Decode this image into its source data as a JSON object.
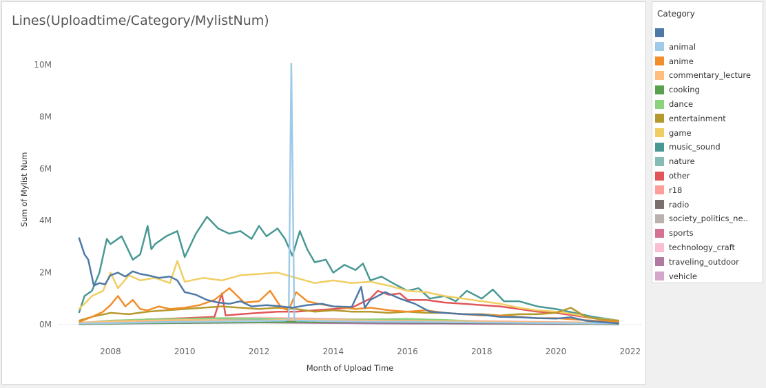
{
  "chart_data": {
    "type": "line",
    "title": "Lines(Uploadtime/Category/MylistNum)",
    "xlabel": "Month of Upload Time",
    "ylabel": "Sum of Mylist Num",
    "xlim": [
      2006.6,
      2022.3
    ],
    "ylim": [
      0,
      10400000
    ],
    "x_ticks": [
      2008,
      2010,
      2012,
      2014,
      2016,
      2018,
      2020,
      2022
    ],
    "x_tick_labels": [
      "2008",
      "2010",
      "2012",
      "2014",
      "2016",
      "2018",
      "2020",
      "2022"
    ],
    "y_ticks": [
      0,
      2000000,
      4000000,
      6000000,
      8000000,
      10000000
    ],
    "y_tick_labels": [
      "0M",
      "2M",
      "4M",
      "6M",
      "8M",
      "10M"
    ],
    "grid": false,
    "legend": {
      "title": "Category",
      "placement": "right",
      "entries": [
        {
          "name": "",
          "color": "#4e79a7"
        },
        {
          "name": "animal",
          "color": "#a0cbe8"
        },
        {
          "name": "anime",
          "color": "#f28e2b"
        },
        {
          "name": "commentary_lecture",
          "color": "#ffbe7d"
        },
        {
          "name": "cooking",
          "color": "#59a14f"
        },
        {
          "name": "dance",
          "color": "#8cd17d"
        },
        {
          "name": "entertainment",
          "color": "#b6992d"
        },
        {
          "name": "game",
          "color": "#f1ce63"
        },
        {
          "name": "music_sound",
          "color": "#499894"
        },
        {
          "name": "nature",
          "color": "#86bcb6"
        },
        {
          "name": "other",
          "color": "#e15759"
        },
        {
          "name": "r18",
          "color": "#ff9d9a"
        },
        {
          "name": "radio",
          "color": "#79706e"
        },
        {
          "name": "society_politics_ne..",
          "color": "#bab0ac"
        },
        {
          "name": "sports",
          "color": "#d37295"
        },
        {
          "name": "technology_craft",
          "color": "#fabfd2"
        },
        {
          "name": "traveling_outdoor",
          "color": "#b07aa1"
        },
        {
          "name": "vehicle",
          "color": "#d4a6c8"
        }
      ]
    },
    "series": [
      {
        "color": "#4e79a7",
        "x": [
          2007.15,
          2007.3,
          2007.4,
          2007.55,
          2007.7,
          2007.85,
          2008.0,
          2008.2,
          2008.4,
          2008.6,
          2008.8,
          2009.0,
          2009.3,
          2009.6,
          2009.8,
          2010.0,
          2010.3,
          2010.6,
          2010.9,
          2011.2,
          2011.5,
          2011.8,
          2012.2,
          2012.6,
          2012.9,
          2013.3,
          2013.7,
          2014.0,
          2014.5,
          2014.75,
          2014.85,
          2015.0,
          2015.4,
          2015.8,
          2016.2,
          2016.6,
          2017.0,
          2017.5,
          2018.0,
          2018.5,
          2019.0,
          2019.5,
          2020.0,
          2020.4,
          2020.8,
          2021.2,
          2021.7
        ],
        "y": [
          3350000,
          2700000,
          2500000,
          1500000,
          1600000,
          1550000,
          1900000,
          2000000,
          1850000,
          2050000,
          1950000,
          1900000,
          1800000,
          1850000,
          1700000,
          1250000,
          1150000,
          950000,
          850000,
          800000,
          900000,
          700000,
          750000,
          700000,
          650000,
          750000,
          800000,
          700000,
          680000,
          1450000,
          650000,
          950000,
          1250000,
          1000000,
          800000,
          500000,
          450000,
          400000,
          380000,
          300000,
          280000,
          250000,
          230000,
          280000,
          150000,
          100000,
          50000
        ]
      },
      {
        "color": "#a0cbe8",
        "x": [
          2007.15,
          2008.0,
          2009.0,
          2010.0,
          2011.0,
          2012.0,
          2012.7,
          2012.8,
          2012.87,
          2012.95,
          2013.02,
          2013.2,
          2014.0,
          2015.0,
          2016.0,
          2017.0,
          2018.0,
          2019.0,
          2020.0,
          2021.0,
          2021.7
        ],
        "y": [
          40000,
          60000,
          80000,
          100000,
          120000,
          140000,
          150000,
          200000,
          10050000,
          250000,
          150000,
          150000,
          130000,
          110000,
          100000,
          90000,
          80000,
          70000,
          60000,
          50000,
          40000
        ]
      },
      {
        "color": "#f28e2b",
        "x": [
          2007.15,
          2007.5,
          2007.8,
          2008.0,
          2008.2,
          2008.4,
          2008.6,
          2008.8,
          2009.0,
          2009.3,
          2009.6,
          2010.0,
          2010.4,
          2010.8,
          2011.2,
          2011.6,
          2012.0,
          2012.3,
          2012.6,
          2012.8,
          2013.0,
          2013.3,
          2013.6,
          2014.0,
          2014.3,
          2014.6,
          2015.0,
          2015.5,
          2016.0,
          2016.5,
          2017.0,
          2017.5,
          2018.0,
          2018.5,
          2019.0,
          2019.5,
          2020.0,
          2020.5,
          2021.0,
          2021.7
        ],
        "y": [
          100000,
          300000,
          500000,
          750000,
          1100000,
          700000,
          950000,
          600000,
          550000,
          700000,
          600000,
          650000,
          750000,
          950000,
          1400000,
          850000,
          900000,
          1300000,
          650000,
          550000,
          1250000,
          900000,
          800000,
          700000,
          650000,
          600000,
          650000,
          550000,
          500000,
          550000,
          450000,
          400000,
          350000,
          350000,
          300000,
          250000,
          250000,
          200000,
          150000,
          100000
        ]
      },
      {
        "color": "#ffbe7d",
        "x": [
          2007.15,
          2008.0,
          2009.0,
          2010.0,
          2011.0,
          2012.0,
          2013.0,
          2014.0,
          2015.0,
          2016.0,
          2017.0,
          2018.0,
          2019.0,
          2020.0,
          2021.0,
          2021.7
        ],
        "y": [
          80000,
          120000,
          150000,
          180000,
          160000,
          150000,
          200000,
          180000,
          150000,
          140000,
          130000,
          120000,
          100000,
          90000,
          80000,
          60000
        ]
      },
      {
        "color": "#59a14f",
        "x": [
          2007.15,
          2008.0,
          2009.0,
          2010.0,
          2011.0,
          2012.0,
          2013.0,
          2014.0,
          2015.0,
          2016.0,
          2017.0,
          2018.0,
          2019.0,
          2020.0,
          2021.0,
          2021.7
        ],
        "y": [
          20000,
          40000,
          60000,
          70000,
          80000,
          90000,
          100000,
          110000,
          120000,
          110000,
          100000,
          90000,
          80000,
          70000,
          60000,
          40000
        ]
      },
      {
        "color": "#8cd17d",
        "x": [
          2007.15,
          2008.0,
          2009.0,
          2010.0,
          2011.0,
          2012.0,
          2013.0,
          2014.0,
          2015.0,
          2016.0,
          2017.0,
          2018.0,
          2019.0,
          2020.0,
          2021.0,
          2021.7
        ],
        "y": [
          60000,
          150000,
          200000,
          220000,
          250000,
          230000,
          200000,
          180000,
          200000,
          220000,
          180000,
          120000,
          80000,
          60000,
          40000,
          30000
        ]
      },
      {
        "color": "#b6992d",
        "x": [
          2007.15,
          2007.5,
          2008.0,
          2008.5,
          2009.0,
          2009.5,
          2010.0,
          2010.5,
          2011.0,
          2011.5,
          2012.0,
          2012.5,
          2013.0,
          2013.5,
          2014.0,
          2014.5,
          2015.0,
          2015.5,
          2016.0,
          2016.5,
          2017.0,
          2017.5,
          2018.0,
          2018.5,
          2019.0,
          2019.5,
          2020.0,
          2020.4,
          2020.8,
          2021.2,
          2021.7
        ],
        "y": [
          150000,
          300000,
          450000,
          400000,
          500000,
          550000,
          600000,
          650000,
          700000,
          650000,
          600000,
          650000,
          600000,
          500000,
          550000,
          500000,
          500000,
          450000,
          500000,
          450000,
          450000,
          400000,
          400000,
          350000,
          400000,
          400000,
          450000,
          650000,
          300000,
          200000,
          150000
        ]
      },
      {
        "color": "#f1ce63",
        "x": [
          2007.15,
          2007.3,
          2007.5,
          2007.8,
          2008.0,
          2008.2,
          2008.5,
          2008.8,
          2009.2,
          2009.6,
          2009.8,
          2010.0,
          2010.5,
          2011.0,
          2011.5,
          2012.0,
          2012.5,
          2013.0,
          2013.5,
          2014.0,
          2014.5,
          2015.0,
          2015.5,
          2016.0,
          2016.5,
          2017.0,
          2017.5,
          2018.0,
          2018.5,
          2019.0,
          2019.5,
          2020.0,
          2020.5,
          2021.0,
          2021.7
        ],
        "y": [
          600000,
          800000,
          1100000,
          1300000,
          2000000,
          1400000,
          1900000,
          1700000,
          1800000,
          1600000,
          2450000,
          1650000,
          1800000,
          1700000,
          1900000,
          1950000,
          2000000,
          1800000,
          1600000,
          1700000,
          1600000,
          1650000,
          1500000,
          1300000,
          1250000,
          1100000,
          1000000,
          900000,
          800000,
          650000,
          550000,
          500000,
          400000,
          250000,
          150000
        ]
      },
      {
        "color": "#499894",
        "x": [
          2007.15,
          2007.3,
          2007.5,
          2007.7,
          2007.9,
          2008.0,
          2008.3,
          2008.6,
          2008.8,
          2009.0,
          2009.1,
          2009.2,
          2009.5,
          2009.8,
          2010.0,
          2010.3,
          2010.6,
          2010.9,
          2011.2,
          2011.5,
          2011.8,
          2012.0,
          2012.2,
          2012.5,
          2012.7,
          2012.9,
          2013.1,
          2013.3,
          2013.5,
          2013.8,
          2014.0,
          2014.3,
          2014.6,
          2014.8,
          2015.0,
          2015.3,
          2015.6,
          2016.0,
          2016.3,
          2016.6,
          2017.0,
          2017.3,
          2017.6,
          2018.0,
          2018.3,
          2018.6,
          2019.0,
          2019.5,
          2020.0,
          2020.5,
          2021.0,
          2021.7
        ],
        "y": [
          450000,
          1100000,
          1300000,
          2000000,
          3300000,
          3100000,
          3400000,
          2500000,
          2700000,
          3800000,
          2900000,
          3100000,
          3400000,
          3600000,
          2600000,
          3500000,
          4150000,
          3700000,
          3500000,
          3600000,
          3300000,
          3800000,
          3400000,
          3700000,
          3300000,
          2650000,
          3600000,
          2900000,
          2400000,
          2500000,
          2000000,
          2300000,
          2100000,
          2350000,
          1700000,
          1850000,
          1600000,
          1300000,
          1400000,
          1000000,
          1100000,
          900000,
          1300000,
          1000000,
          1350000,
          900000,
          900000,
          700000,
          600000,
          450000,
          300000,
          150000
        ]
      },
      {
        "color": "#86bcb6",
        "x": [
          2007.15,
          2008.0,
          2009.0,
          2010.0,
          2011.0,
          2012.0,
          2013.0,
          2014.0,
          2015.0,
          2016.0,
          2017.0,
          2018.0,
          2019.0,
          2020.0,
          2021.0,
          2021.7
        ],
        "y": [
          30000,
          80000,
          120000,
          150000,
          170000,
          180000,
          200000,
          190000,
          170000,
          150000,
          130000,
          110000,
          100000,
          90000,
          70000,
          50000
        ]
      },
      {
        "color": "#e15759",
        "x": [
          2007.15,
          2008.0,
          2009.0,
          2010.0,
          2010.8,
          2011.0,
          2011.1,
          2011.5,
          2012.0,
          2012.5,
          2013.0,
          2013.5,
          2014.0,
          2014.5,
          2015.0,
          2015.2,
          2015.5,
          2015.8,
          2016.0,
          2016.5,
          2017.0,
          2017.5,
          2018.0,
          2018.5,
          2019.0,
          2019.5,
          2020.0,
          2020.5,
          2021.0,
          2021.7
        ],
        "y": [
          50000,
          120000,
          200000,
          250000,
          300000,
          1200000,
          350000,
          400000,
          450000,
          500000,
          500000,
          550000,
          600000,
          650000,
          1000000,
          1300000,
          1150000,
          1200000,
          950000,
          950000,
          850000,
          800000,
          750000,
          700000,
          600000,
          500000,
          450000,
          350000,
          250000,
          150000
        ]
      },
      {
        "color": "#ff9d9a",
        "x": [
          2007.15,
          2008.0,
          2009.0,
          2010.0,
          2011.0,
          2012.0,
          2013.0,
          2014.0,
          2015.0,
          2016.0,
          2017.0,
          2018.0,
          2019.0,
          2020.0,
          2021.0,
          2021.7
        ],
        "y": [
          40000,
          100000,
          130000,
          150000,
          180000,
          200000,
          220000,
          200000,
          180000,
          160000,
          140000,
          120000,
          100000,
          80000,
          60000,
          40000
        ]
      },
      {
        "color": "#79706e",
        "x": [
          2007.15,
          2008.0,
          2009.0,
          2010.0,
          2011.0,
          2012.0,
          2013.0,
          2014.0,
          2015.0,
          2016.0,
          2017.0,
          2018.0,
          2019.0,
          2020.0,
          2021.0,
          2021.7
        ],
        "y": [
          20000,
          50000,
          80000,
          100000,
          110000,
          120000,
          100000,
          90000,
          80000,
          70000,
          60000,
          50000,
          40000,
          30000,
          20000,
          10000
        ]
      },
      {
        "color": "#bab0ac",
        "x": [
          2007.15,
          2008.0,
          2009.0,
          2010.0,
          2011.0,
          2012.0,
          2013.0,
          2014.0,
          2015.0,
          2016.0,
          2017.0,
          2018.0,
          2019.0,
          2020.0,
          2021.0,
          2021.7
        ],
        "y": [
          30000,
          70000,
          100000,
          120000,
          150000,
          170000,
          160000,
          140000,
          130000,
          120000,
          100000,
          90000,
          80000,
          70000,
          50000,
          30000
        ]
      },
      {
        "color": "#d37295",
        "x": [
          2007.15,
          2008.0,
          2009.0,
          2010.0,
          2011.0,
          2012.0,
          2013.0,
          2014.0,
          2015.0,
          2016.0,
          2017.0,
          2018.0,
          2019.0,
          2020.0,
          2021.0,
          2021.7
        ],
        "y": [
          20000,
          50000,
          80000,
          90000,
          100000,
          110000,
          120000,
          110000,
          100000,
          90000,
          80000,
          70000,
          60000,
          50000,
          40000,
          20000
        ]
      },
      {
        "color": "#fabfd2",
        "x": [
          2007.15,
          2008.0,
          2009.0,
          2010.0,
          2011.0,
          2012.0,
          2013.0,
          2014.0,
          2015.0,
          2016.0,
          2017.0,
          2018.0,
          2019.0,
          2020.0,
          2021.0,
          2021.7
        ],
        "y": [
          50000,
          150000,
          200000,
          220000,
          250000,
          270000,
          250000,
          220000,
          200000,
          180000,
          160000,
          140000,
          120000,
          100000,
          80000,
          50000
        ]
      },
      {
        "color": "#b07aa1",
        "x": [
          2007.15,
          2008.0,
          2009.0,
          2010.0,
          2011.0,
          2012.0,
          2013.0,
          2014.0,
          2015.0,
          2016.0,
          2017.0,
          2018.0,
          2019.0,
          2020.0,
          2021.0,
          2021.7
        ],
        "y": [
          10000,
          30000,
          50000,
          60000,
          70000,
          80000,
          70000,
          60000,
          50000,
          40000,
          40000,
          30000,
          30000,
          20000,
          20000,
          10000
        ]
      },
      {
        "color": "#d4a6c8",
        "x": [
          2007.15,
          2008.0,
          2009.0,
          2010.0,
          2011.0,
          2012.0,
          2013.0,
          2014.0,
          2015.0,
          2016.0,
          2017.0,
          2018.0,
          2019.0,
          2020.0,
          2021.0,
          2021.7
        ],
        "y": [
          15000,
          40000,
          60000,
          70000,
          80000,
          90000,
          80000,
          70000,
          60000,
          50000,
          50000,
          40000,
          40000,
          30000,
          20000,
          15000
        ]
      }
    ]
  }
}
